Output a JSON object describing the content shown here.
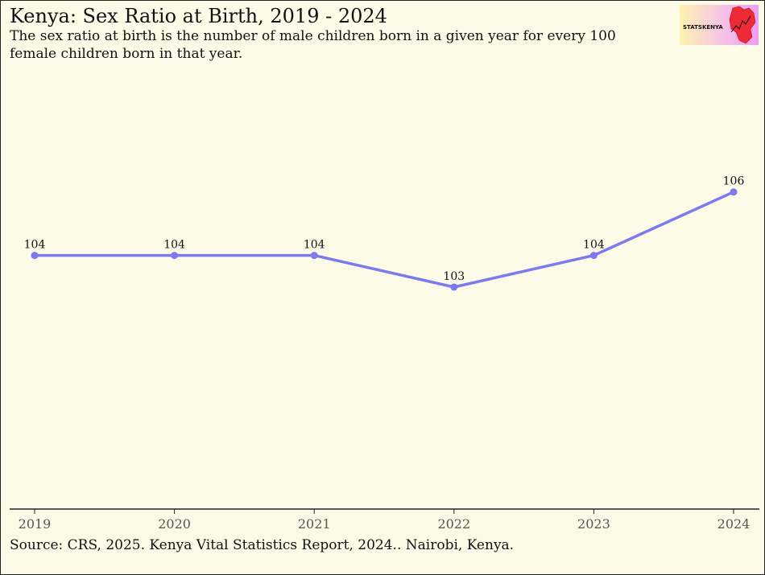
{
  "title": "Kenya: Sex Ratio at Birth, 2019 - 2024",
  "subtitle": "The sex ratio at birth is the number of male children born in a given year for every 100 female children born in that year.",
  "source": "Source: CRS, 2025. Kenya Vital Statistics Report, 2024.. Nairobi, Kenya.",
  "logo": {
    "text": "STATSKENYA"
  },
  "colors": {
    "line": "#7b7bef",
    "background": "#fefae8",
    "axis": "#222222"
  },
  "chart_data": {
    "type": "line",
    "x": [
      "2019",
      "2020",
      "2021",
      "2022",
      "2023",
      "2024"
    ],
    "values": [
      104,
      104,
      104,
      103,
      104,
      106
    ],
    "data_labels": [
      "104",
      "104",
      "104",
      "103",
      "104",
      "106"
    ],
    "ylim": [
      96,
      110
    ],
    "grid": false,
    "legend": "none",
    "xlabel": "",
    "ylabel": ""
  }
}
